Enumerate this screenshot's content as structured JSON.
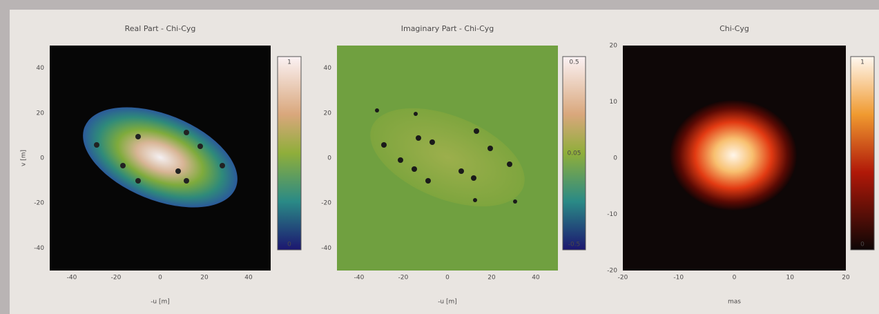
{
  "panels": [
    {
      "title": "Real Part - Chi-Cyg",
      "x_label": "-u [m]",
      "y_label": "v [m]",
      "xticks": [
        "-40",
        "-20",
        "0",
        "20",
        "40"
      ],
      "yticks": [
        "40",
        "20",
        "0",
        "-20",
        "-40"
      ],
      "colorbar_ticks": [
        "1",
        "0"
      ]
    },
    {
      "title": "Imaginary Part - Chi-Cyg",
      "x_label": "-u [m]",
      "y_label": "",
      "xticks": [
        "-40",
        "-20",
        "0",
        "20",
        "40"
      ],
      "yticks": [
        "40",
        "20",
        "0",
        "-20",
        "-40"
      ],
      "colorbar_ticks": [
        "0.5",
        "0.05",
        "-0.5"
      ]
    },
    {
      "title": "Chi-Cyg",
      "x_label": "mas",
      "y_label": "",
      "xticks": [
        "-20",
        "-10",
        "0",
        "10",
        "20"
      ],
      "yticks": [
        "20",
        "10",
        "0",
        "-10",
        "-20"
      ],
      "colorbar_ticks": [
        "1",
        "0"
      ]
    }
  ]
}
